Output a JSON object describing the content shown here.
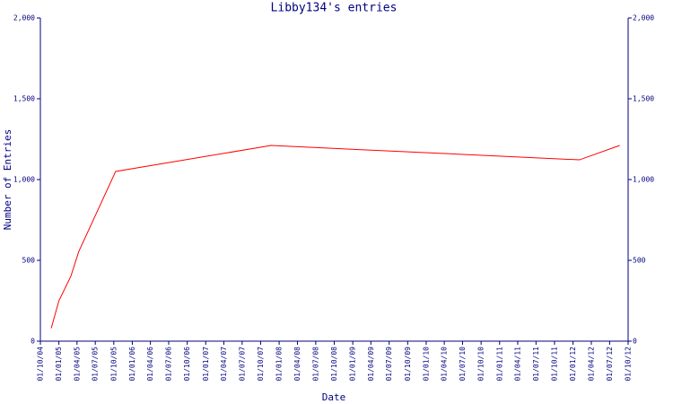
{
  "chart_data": {
    "type": "line",
    "title": "Libby134's entries",
    "xlabel": "Date",
    "ylabel": "Number of Entries",
    "x": [
      "2004-11-24",
      "2005-01-01",
      "2005-03-01",
      "2005-04-10",
      "2005-10-10",
      "2007-11-22",
      "2012-02-02",
      "2012-08-20"
    ],
    "series": [
      {
        "name": "Entries",
        "color": "#ff0000",
        "values": [
          80,
          250,
          400,
          555,
          1050,
          1211,
          1122,
          1211
        ]
      }
    ],
    "xlim": [
      "2004-10-01",
      "2012-10-01"
    ],
    "xticks": [
      {
        "value": "2004-10-01",
        "label": "01/10/04"
      },
      {
        "value": "2005-01-01",
        "label": "01/01/05"
      },
      {
        "value": "2005-04-01",
        "label": "01/04/05"
      },
      {
        "value": "2005-07-01",
        "label": "01/07/05"
      },
      {
        "value": "2005-10-01",
        "label": "01/10/05"
      },
      {
        "value": "2006-01-01",
        "label": "01/01/06"
      },
      {
        "value": "2006-04-01",
        "label": "01/04/06"
      },
      {
        "value": "2006-07-01",
        "label": "01/07/06"
      },
      {
        "value": "2006-10-01",
        "label": "01/10/06"
      },
      {
        "value": "2007-01-01",
        "label": "01/01/07"
      },
      {
        "value": "2007-04-01",
        "label": "01/04/07"
      },
      {
        "value": "2007-07-01",
        "label": "01/07/07"
      },
      {
        "value": "2007-10-01",
        "label": "01/10/07"
      },
      {
        "value": "2008-01-01",
        "label": "01/01/08"
      },
      {
        "value": "2008-04-01",
        "label": "01/04/08"
      },
      {
        "value": "2008-07-01",
        "label": "01/07/08"
      },
      {
        "value": "2008-10-01",
        "label": "01/10/08"
      },
      {
        "value": "2009-01-01",
        "label": "01/01/09"
      },
      {
        "value": "2009-04-01",
        "label": "01/04/09"
      },
      {
        "value": "2009-07-01",
        "label": "01/07/09"
      },
      {
        "value": "2009-10-01",
        "label": "01/10/09"
      },
      {
        "value": "2010-01-01",
        "label": "01/01/10"
      },
      {
        "value": "2010-04-01",
        "label": "01/04/10"
      },
      {
        "value": "2010-07-01",
        "label": "01/07/10"
      },
      {
        "value": "2010-10-01",
        "label": "01/10/10"
      },
      {
        "value": "2011-01-01",
        "label": "01/01/11"
      },
      {
        "value": "2011-04-01",
        "label": "01/04/11"
      },
      {
        "value": "2011-07-01",
        "label": "01/07/11"
      },
      {
        "value": "2011-10-01",
        "label": "01/10/11"
      },
      {
        "value": "2012-01-01",
        "label": "01/01/12"
      },
      {
        "value": "2012-04-01",
        "label": "01/04/12"
      },
      {
        "value": "2012-07-01",
        "label": "01/07/12"
      },
      {
        "value": "2012-10-01",
        "label": "01/10/12"
      }
    ],
    "ylim": [
      0,
      2000
    ],
    "yticks": [
      0,
      500,
      {
        "value": 1000,
        "label": "1,000"
      },
      {
        "value": 1500,
        "label": "1,500"
      },
      {
        "value": 2000,
        "label": "2,000"
      }
    ],
    "y2lim": [
      0,
      2000
    ],
    "y2ticks": [
      0,
      500,
      {
        "value": 1000,
        "label": "1,000"
      },
      {
        "value": 1500,
        "label": "1,500"
      },
      {
        "value": 2000,
        "label": "2,000"
      }
    ],
    "grid": false
  }
}
